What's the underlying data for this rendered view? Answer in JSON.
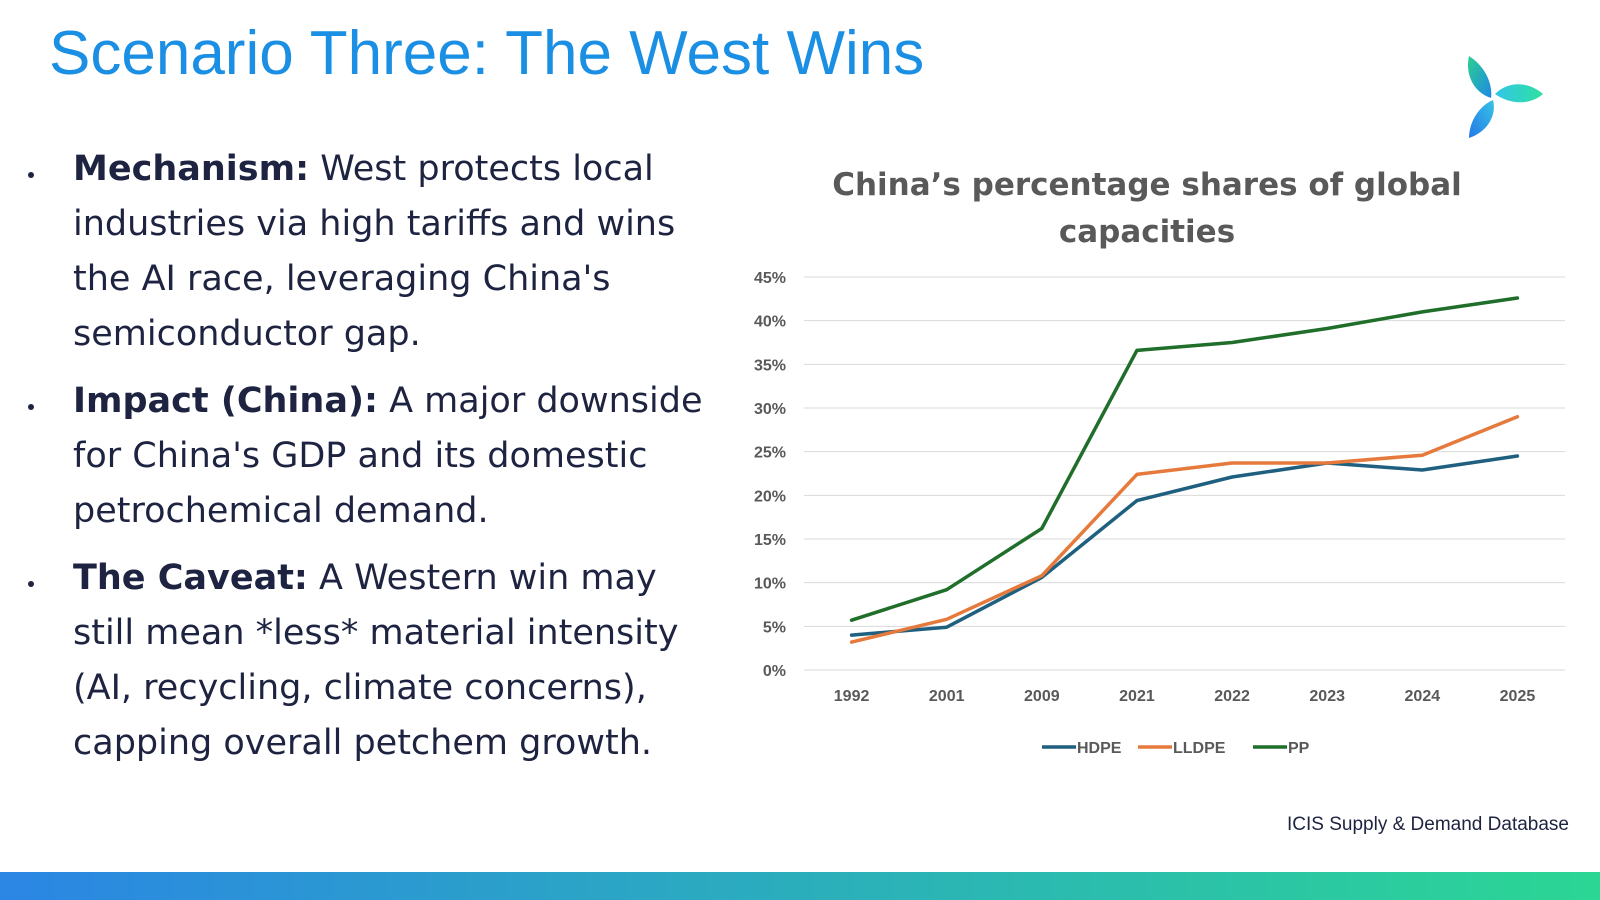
{
  "slide": {
    "title": "Scenario Three: The West Wins",
    "source": "ICIS Supply & Demand Database",
    "accent_color": "#1a8fe3",
    "logo": "triskelion-leaf-logo"
  },
  "bullets": [
    {
      "label": "Mechanism:",
      "text": " West protects local industries via high tariffs and wins the AI race, leveraging China's semiconductor gap."
    },
    {
      "label": "Impact (China):",
      "text": " A major downside for China's GDP and its domestic petrochemical demand."
    },
    {
      "label": "The Caveat:",
      "text": " A Western win may still mean *less* material intensity (AI, recycling, climate concerns), capping overall petchem growth."
    }
  ],
  "chart_data": {
    "type": "line",
    "title": "China’s percentage shares of global capacities",
    "categories": [
      "1992",
      "2001",
      "2009",
      "2021",
      "2022",
      "2023",
      "2024",
      "2025"
    ],
    "y_tick_labels": [
      "0%",
      "5%",
      "10%",
      "15%",
      "20%",
      "25%",
      "30%",
      "35%",
      "40%",
      "45%"
    ],
    "ylim": [
      0,
      45
    ],
    "grid": true,
    "legend_position": "bottom",
    "series": [
      {
        "name": "HDPE",
        "color": "#1f5f7f",
        "values": [
          4.0,
          4.9,
          10.6,
          19.4,
          22.1,
          23.7,
          22.9,
          24.5
        ]
      },
      {
        "name": "LLDPE",
        "color": "#e57a3c",
        "values": [
          3.2,
          5.8,
          10.8,
          22.4,
          23.7,
          23.7,
          24.6,
          29.0
        ]
      },
      {
        "name": "PP",
        "color": "#1f6e2a",
        "values": [
          5.7,
          9.2,
          16.2,
          36.6,
          37.5,
          39.1,
          41.0,
          42.6
        ]
      }
    ]
  }
}
